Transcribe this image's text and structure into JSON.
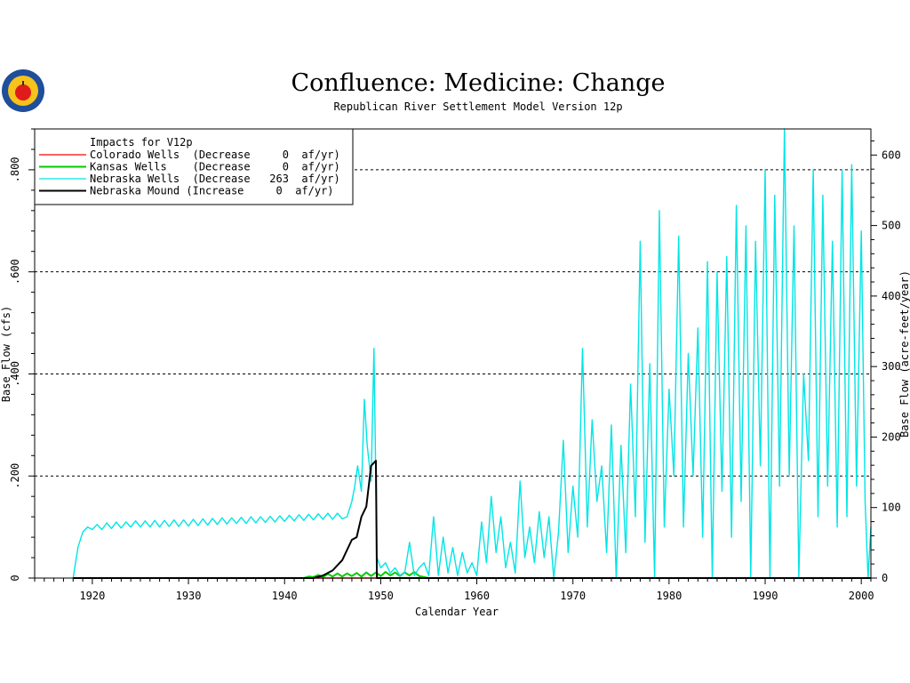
{
  "colors": {
    "colorado": "#ff0000",
    "kansas": "#00cc00",
    "nebraska_wells": "#00e5e5",
    "nebraska_mound": "#000000",
    "logo_ring": "#1f4e9a",
    "logo_fill": "#f6c21c",
    "logo_apple": "#e01b1b"
  },
  "logo": {
    "icon": "apple-seal-icon"
  },
  "chart_data": {
    "type": "line",
    "title": "Confluence: Medicine: Change",
    "subtitle": "Republican River Settlement Model Version 12p",
    "xlabel": "Calendar Year",
    "ylabel_left": "Base Flow (cfs)",
    "ylabel_right": "Base Flow (acre-feet/year)",
    "xlim": [
      1914,
      2001
    ],
    "ylim": [
      0,
      0.88
    ],
    "ylim_right": [
      0,
      637
    ],
    "x_ticks": [
      1920,
      1930,
      1940,
      1950,
      1960,
      1970,
      1980,
      1990,
      2000
    ],
    "x_tick_labels": [
      "1920",
      "1930",
      "1940",
      "1950",
      "1960",
      "1970",
      "1980",
      "1990",
      "2000"
    ],
    "y_ticks": [
      0,
      0.2,
      0.4,
      0.6,
      0.8
    ],
    "y_tick_labels": [
      "0",
      ".200",
      ".400",
      ".600",
      ".800"
    ],
    "y_right_ticks": [
      0,
      100,
      200,
      300,
      400,
      500,
      600
    ],
    "y_right_tick_labels": [
      "0",
      "100",
      "200",
      "300",
      "400",
      "500",
      "600"
    ],
    "grid": "dashed horizontal at .200 .400 .600 .800",
    "legend": {
      "title": "Impacts for V12p",
      "placement": "top-left",
      "entries": [
        {
          "text": "Colorado Wells  (Decrease     0  af/yr)",
          "color_key": "colorado"
        },
        {
          "text": "Kansas Wells    (Decrease     0  af/yr)",
          "color_key": "kansas"
        },
        {
          "text": "Nebraska Wells  (Decrease   263  af/yr)",
          "color_key": "nebraska_wells"
        },
        {
          "text": "Nebraska Mound (Increase     0  af/yr)",
          "color_key": "nebraska_mound"
        }
      ]
    },
    "series": [
      {
        "name": "Colorado Wells",
        "color_key": "colorado",
        "points": [
          [
            1918.0,
            0.0
          ],
          [
            2001.0,
            0.0
          ]
        ]
      },
      {
        "name": "Kansas Wells",
        "color_key": "kansas",
        "points": [
          [
            1942.0,
            0.0
          ],
          [
            1942.5,
            0.003
          ],
          [
            1943.0,
            0.002
          ],
          [
            1943.5,
            0.006
          ],
          [
            1944.0,
            0.002
          ],
          [
            1944.5,
            0.008
          ],
          [
            1945.0,
            0.003
          ],
          [
            1945.5,
            0.009
          ],
          [
            1946.0,
            0.003
          ],
          [
            1946.5,
            0.009
          ],
          [
            1947.0,
            0.004
          ],
          [
            1947.5,
            0.01
          ],
          [
            1948.0,
            0.003
          ],
          [
            1948.5,
            0.011
          ],
          [
            1949.0,
            0.004
          ],
          [
            1949.5,
            0.011
          ],
          [
            1950.0,
            0.004
          ],
          [
            1950.5,
            0.012
          ],
          [
            1951.0,
            0.005
          ],
          [
            1951.5,
            0.011
          ],
          [
            1952.0,
            0.004
          ],
          [
            1952.5,
            0.011
          ],
          [
            1953.0,
            0.005
          ],
          [
            1953.5,
            0.012
          ],
          [
            1954.0,
            0.004
          ],
          [
            1954.5,
            0.002
          ],
          [
            1955.0,
            0.0
          ],
          [
            2001.0,
            0.0
          ]
        ]
      },
      {
        "name": "Nebraska Wells",
        "color_key": "nebraska_wells",
        "points": [
          [
            1918.0,
            0.0
          ],
          [
            1918.5,
            0.06
          ],
          [
            1919.0,
            0.09
          ],
          [
            1919.5,
            0.1
          ],
          [
            1920.0,
            0.095
          ],
          [
            1920.5,
            0.105
          ],
          [
            1921.0,
            0.095
          ],
          [
            1921.5,
            0.108
          ],
          [
            1922.0,
            0.097
          ],
          [
            1922.5,
            0.11
          ],
          [
            1923.0,
            0.098
          ],
          [
            1923.5,
            0.11
          ],
          [
            1924.0,
            0.1
          ],
          [
            1924.5,
            0.112
          ],
          [
            1925.0,
            0.1
          ],
          [
            1925.5,
            0.112
          ],
          [
            1926.0,
            0.1
          ],
          [
            1926.5,
            0.113
          ],
          [
            1927.0,
            0.1
          ],
          [
            1927.5,
            0.113
          ],
          [
            1928.0,
            0.101
          ],
          [
            1928.5,
            0.114
          ],
          [
            1929.0,
            0.101
          ],
          [
            1929.5,
            0.114
          ],
          [
            1930.0,
            0.102
          ],
          [
            1930.5,
            0.115
          ],
          [
            1931.0,
            0.103
          ],
          [
            1931.5,
            0.116
          ],
          [
            1932.0,
            0.104
          ],
          [
            1932.5,
            0.117
          ],
          [
            1933.0,
            0.105
          ],
          [
            1933.5,
            0.118
          ],
          [
            1934.0,
            0.106
          ],
          [
            1934.5,
            0.118
          ],
          [
            1935.0,
            0.107
          ],
          [
            1935.5,
            0.119
          ],
          [
            1936.0,
            0.107
          ],
          [
            1936.5,
            0.12
          ],
          [
            1937.0,
            0.108
          ],
          [
            1937.5,
            0.12
          ],
          [
            1938.0,
            0.109
          ],
          [
            1938.5,
            0.121
          ],
          [
            1939.0,
            0.11
          ],
          [
            1939.5,
            0.122
          ],
          [
            1940.0,
            0.111
          ],
          [
            1940.5,
            0.123
          ],
          [
            1941.0,
            0.112
          ],
          [
            1941.5,
            0.124
          ],
          [
            1942.0,
            0.113
          ],
          [
            1942.5,
            0.125
          ],
          [
            1943.0,
            0.114
          ],
          [
            1943.5,
            0.126
          ],
          [
            1944.0,
            0.115
          ],
          [
            1944.5,
            0.127
          ],
          [
            1945.0,
            0.115
          ],
          [
            1945.5,
            0.127
          ],
          [
            1946.0,
            0.116
          ],
          [
            1946.5,
            0.12
          ],
          [
            1947.0,
            0.15
          ],
          [
            1947.3,
            0.18
          ],
          [
            1947.6,
            0.22
          ],
          [
            1948.0,
            0.17
          ],
          [
            1948.3,
            0.35
          ],
          [
            1948.6,
            0.26
          ],
          [
            1949.0,
            0.19
          ],
          [
            1949.3,
            0.45
          ],
          [
            1949.6,
            0.04
          ],
          [
            1950.0,
            0.02
          ],
          [
            1950.5,
            0.03
          ],
          [
            1951.0,
            0.01
          ],
          [
            1951.5,
            0.02
          ],
          [
            1952.0,
            0.005
          ],
          [
            1952.5,
            0.01
          ],
          [
            1953.0,
            0.07
          ],
          [
            1953.5,
            0.005
          ],
          [
            1954.0,
            0.02
          ],
          [
            1954.5,
            0.03
          ],
          [
            1955.0,
            0.005
          ],
          [
            1955.5,
            0.12
          ],
          [
            1956.0,
            0.005
          ],
          [
            1956.5,
            0.08
          ],
          [
            1957.0,
            0.01
          ],
          [
            1957.5,
            0.06
          ],
          [
            1958.0,
            0.005
          ],
          [
            1958.5,
            0.05
          ],
          [
            1959.0,
            0.01
          ],
          [
            1959.5,
            0.03
          ],
          [
            1960.0,
            0.005
          ],
          [
            1960.5,
            0.11
          ],
          [
            1961.0,
            0.03
          ],
          [
            1961.5,
            0.16
          ],
          [
            1962.0,
            0.05
          ],
          [
            1962.5,
            0.12
          ],
          [
            1963.0,
            0.02
          ],
          [
            1963.5,
            0.07
          ],
          [
            1964.0,
            0.01
          ],
          [
            1964.5,
            0.19
          ],
          [
            1965.0,
            0.04
          ],
          [
            1965.5,
            0.1
          ],
          [
            1966.0,
            0.03
          ],
          [
            1966.5,
            0.13
          ],
          [
            1967.0,
            0.04
          ],
          [
            1967.5,
            0.12
          ],
          [
            1968.0,
            0.0
          ],
          [
            1968.5,
            0.09
          ],
          [
            1969.0,
            0.27
          ],
          [
            1969.5,
            0.05
          ],
          [
            1970.0,
            0.18
          ],
          [
            1970.5,
            0.08
          ],
          [
            1971.0,
            0.45
          ],
          [
            1971.5,
            0.1
          ],
          [
            1972.0,
            0.31
          ],
          [
            1972.5,
            0.15
          ],
          [
            1973.0,
            0.22
          ],
          [
            1973.5,
            0.05
          ],
          [
            1974.0,
            0.3
          ],
          [
            1974.5,
            0.0
          ],
          [
            1975.0,
            0.26
          ],
          [
            1975.5,
            0.05
          ],
          [
            1976.0,
            0.38
          ],
          [
            1976.5,
            0.12
          ],
          [
            1977.0,
            0.66
          ],
          [
            1977.5,
            0.07
          ],
          [
            1978.0,
            0.42
          ],
          [
            1978.5,
            0.0
          ],
          [
            1979.0,
            0.72
          ],
          [
            1979.5,
            0.1
          ],
          [
            1980.0,
            0.37
          ],
          [
            1980.5,
            0.2
          ],
          [
            1981.0,
            0.67
          ],
          [
            1981.5,
            0.1
          ],
          [
            1982.0,
            0.44
          ],
          [
            1982.5,
            0.2
          ],
          [
            1983.0,
            0.49
          ],
          [
            1983.5,
            0.08
          ],
          [
            1984.0,
            0.62
          ],
          [
            1984.5,
            0.0
          ],
          [
            1985.0,
            0.6
          ],
          [
            1985.5,
            0.17
          ],
          [
            1986.0,
            0.63
          ],
          [
            1986.5,
            0.08
          ],
          [
            1987.0,
            0.73
          ],
          [
            1987.5,
            0.15
          ],
          [
            1988.0,
            0.69
          ],
          [
            1988.5,
            0.0
          ],
          [
            1989.0,
            0.66
          ],
          [
            1989.5,
            0.22
          ],
          [
            1990.0,
            0.8
          ],
          [
            1990.5,
            0.0
          ],
          [
            1991.0,
            0.75
          ],
          [
            1991.5,
            0.18
          ],
          [
            1992.0,
            0.88
          ],
          [
            1992.5,
            0.2
          ],
          [
            1993.0,
            0.69
          ],
          [
            1993.5,
            0.0
          ],
          [
            1994.0,
            0.4
          ],
          [
            1994.5,
            0.23
          ],
          [
            1995.0,
            0.8
          ],
          [
            1995.5,
            0.12
          ],
          [
            1996.0,
            0.75
          ],
          [
            1996.5,
            0.18
          ],
          [
            1997.0,
            0.66
          ],
          [
            1997.5,
            0.1
          ],
          [
            1998.0,
            0.8
          ],
          [
            1998.5,
            0.12
          ],
          [
            1999.0,
            0.81
          ],
          [
            1999.5,
            0.18
          ],
          [
            2000.0,
            0.68
          ],
          [
            2000.4,
            0.15
          ],
          [
            2000.7,
            0.0
          ],
          [
            2001.0,
            0.1
          ]
        ]
      },
      {
        "name": "Nebraska Mound",
        "color_key": "nebraska_mound",
        "points": [
          [
            1918.0,
            0.0
          ],
          [
            1943.0,
            0.0
          ],
          [
            1944.0,
            0.005
          ],
          [
            1945.0,
            0.015
          ],
          [
            1946.0,
            0.035
          ],
          [
            1947.0,
            0.075
          ],
          [
            1947.5,
            0.08
          ],
          [
            1948.0,
            0.12
          ],
          [
            1948.5,
            0.14
          ],
          [
            1949.0,
            0.22
          ],
          [
            1949.5,
            0.23
          ],
          [
            1949.6,
            0.0
          ],
          [
            2001.0,
            0.0
          ]
        ]
      }
    ]
  }
}
